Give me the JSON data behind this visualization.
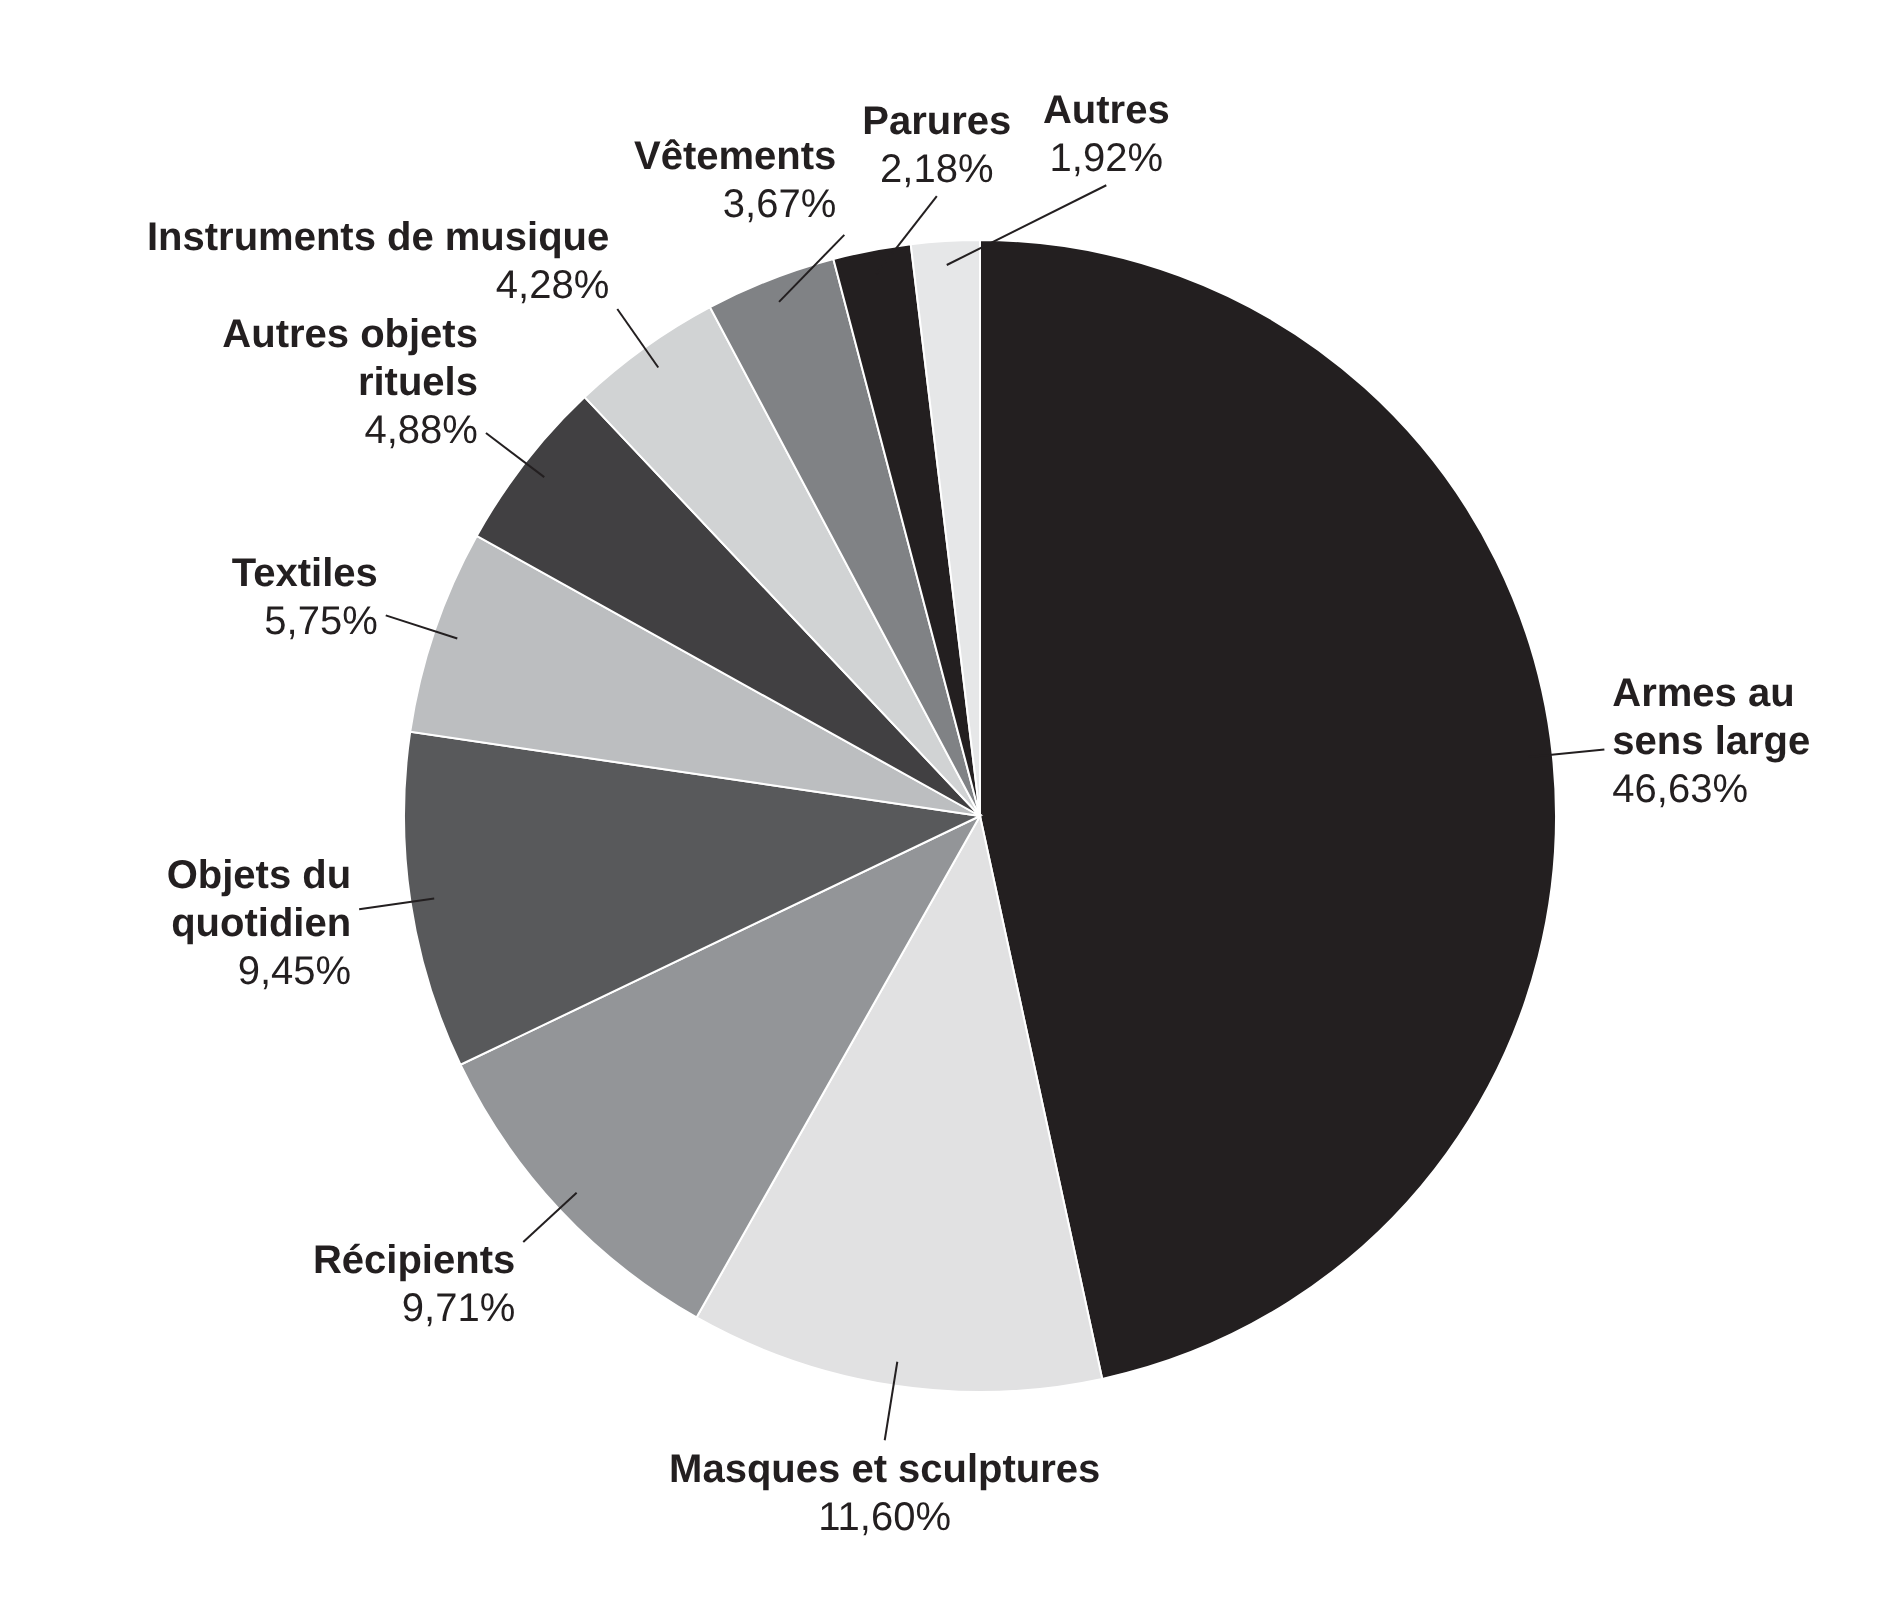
{
  "chart_data": {
    "type": "pie",
    "categories": [
      "Armes au sens large",
      "Masques et sculptures",
      "Récipients",
      "Objets du quotidien",
      "Textiles",
      "Autres objets rituels",
      "Instruments de musique",
      "Vêtements",
      "Parures",
      "Autres"
    ],
    "values": [
      46.63,
      11.6,
      9.71,
      9.45,
      5.75,
      4.88,
      4.28,
      3.67,
      2.18,
      1.92
    ],
    "value_labels": [
      "46,63%",
      "11,60%",
      "9,71%",
      "9,45%",
      "5,75%",
      "4,88%",
      "4,28%",
      "3,67%",
      "2,18%",
      "1,92%"
    ],
    "colors": [
      "#231f20",
      "#e1e1e2",
      "#939598",
      "#58595b",
      "#bcbec0",
      "#414042",
      "#d1d3d4",
      "#808285",
      "#231f20",
      "#e6e7e8"
    ]
  }
}
